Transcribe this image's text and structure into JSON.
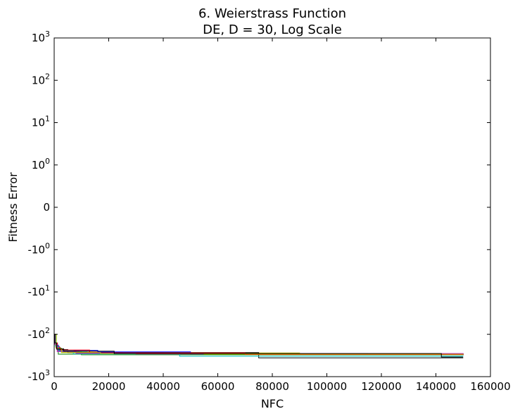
{
  "chart_data": {
    "type": "line",
    "title": "6.   Weierstrass Function",
    "subtitle": "DE, D = 30, Log Scale",
    "xlabel": "NFC",
    "ylabel": "Fitness Error",
    "xlim": [
      0,
      160000
    ],
    "ylim": [
      -1000,
      1000
    ],
    "yscale": "symlog",
    "grid": false,
    "legend": "none",
    "x_ticks": [
      0,
      20000,
      40000,
      60000,
      80000,
      100000,
      120000,
      140000,
      160000
    ],
    "x_tick_labels": [
      "0",
      "20000",
      "40000",
      "60000",
      "80000",
      "100000",
      "120000",
      "140000",
      "160000"
    ],
    "y_ticks": [
      {
        "value": 1000,
        "base": "10",
        "exp": "3"
      },
      {
        "value": 100,
        "base": "10",
        "exp": "2"
      },
      {
        "value": 10,
        "base": "10",
        "exp": "1"
      },
      {
        "value": 1,
        "base": "10",
        "exp": "0"
      },
      {
        "value": 0,
        "base": "0",
        "exp": ""
      },
      {
        "value": -1,
        "base": "-10",
        "exp": "0"
      },
      {
        "value": -10,
        "base": "-10",
        "exp": "1"
      },
      {
        "value": -100,
        "base": "-10",
        "exp": "2"
      },
      {
        "value": -1000,
        "base": "-10",
        "exp": "3"
      }
    ],
    "series": [
      {
        "color": "#0000ff",
        "points": [
          [
            0,
            -100
          ],
          [
            500,
            -180
          ],
          [
            1500,
            -250
          ],
          [
            8000,
            -275
          ],
          [
            36000,
            -285
          ],
          [
            115000,
            -300
          ],
          [
            150000,
            -310
          ]
        ]
      },
      {
        "color": "#008000",
        "points": [
          [
            0,
            -100
          ],
          [
            600,
            -200
          ],
          [
            2000,
            -255
          ],
          [
            10000,
            -270
          ],
          [
            46000,
            -290
          ],
          [
            150000,
            -300
          ]
        ]
      },
      {
        "color": "#ff0000",
        "points": [
          [
            0,
            -100
          ],
          [
            400,
            -160
          ],
          [
            1200,
            -240
          ],
          [
            6000,
            -265
          ],
          [
            25000,
            -280
          ],
          [
            80000,
            -295
          ],
          [
            150000,
            -300
          ]
        ]
      },
      {
        "color": "#00bfbf",
        "points": [
          [
            0,
            -100
          ],
          [
            700,
            -210
          ],
          [
            2500,
            -260
          ],
          [
            12000,
            -280
          ],
          [
            60000,
            -295
          ],
          [
            150000,
            -305
          ]
        ]
      },
      {
        "color": "#bf00bf",
        "points": [
          [
            0,
            -100
          ],
          [
            500,
            -190
          ],
          [
            1800,
            -250
          ],
          [
            9000,
            -270
          ],
          [
            40000,
            -285
          ],
          [
            150000,
            -300
          ]
        ]
      },
      {
        "color": "#bfbf00",
        "points": [
          [
            0,
            -100
          ],
          [
            800,
            -220
          ],
          [
            3000,
            -265
          ],
          [
            14000,
            -275
          ],
          [
            90000,
            -290
          ],
          [
            150000,
            -305
          ]
        ]
      },
      {
        "color": "#000000",
        "points": [
          [
            0,
            -100
          ],
          [
            300,
            -170
          ],
          [
            1000,
            -230
          ],
          [
            5000,
            -270
          ],
          [
            75000,
            -360
          ],
          [
            150000,
            -360
          ]
        ]
      },
      {
        "color": "#0000ff",
        "points": [
          [
            0,
            -100
          ],
          [
            600,
            -200
          ],
          [
            2000,
            -240
          ],
          [
            16000,
            -260
          ],
          [
            50000,
            -290
          ],
          [
            150000,
            -295
          ]
        ]
      },
      {
        "color": "#008000",
        "points": [
          [
            0,
            -100
          ],
          [
            450,
            -185
          ],
          [
            1500,
            -295
          ],
          [
            10000,
            -305
          ],
          [
            100000,
            -305
          ],
          [
            150000,
            -310
          ]
        ]
      },
      {
        "color": "#ff0000",
        "points": [
          [
            0,
            -100
          ],
          [
            650,
            -205
          ],
          [
            2200,
            -235
          ],
          [
            13000,
            -275
          ],
          [
            70000,
            -300
          ],
          [
            150000,
            -305
          ]
        ]
      },
      {
        "color": "#00bfbf",
        "points": [
          [
            0,
            -100
          ],
          [
            550,
            -195
          ],
          [
            1600,
            -245
          ],
          [
            7000,
            -290
          ],
          [
            46000,
            -330
          ],
          [
            150000,
            -330
          ]
        ]
      },
      {
        "color": "#bf00bf",
        "points": [
          [
            0,
            -100
          ],
          [
            350,
            -175
          ],
          [
            1100,
            -255
          ],
          [
            8000,
            -280
          ],
          [
            30000,
            -290
          ],
          [
            150000,
            -300
          ]
        ]
      },
      {
        "color": "#bfbf00",
        "points": [
          [
            0,
            -100
          ],
          [
            750,
            -215
          ],
          [
            2700,
            -270
          ],
          [
            17000,
            -285
          ],
          [
            55000,
            -295
          ],
          [
            150000,
            -300
          ]
        ]
      },
      {
        "color": "#000000",
        "points": [
          [
            0,
            -100
          ],
          [
            250,
            -160
          ],
          [
            900,
            -220
          ],
          [
            3500,
            -250
          ],
          [
            22000,
            -285
          ],
          [
            142000,
            -345
          ],
          [
            150000,
            -345
          ]
        ]
      }
    ]
  }
}
